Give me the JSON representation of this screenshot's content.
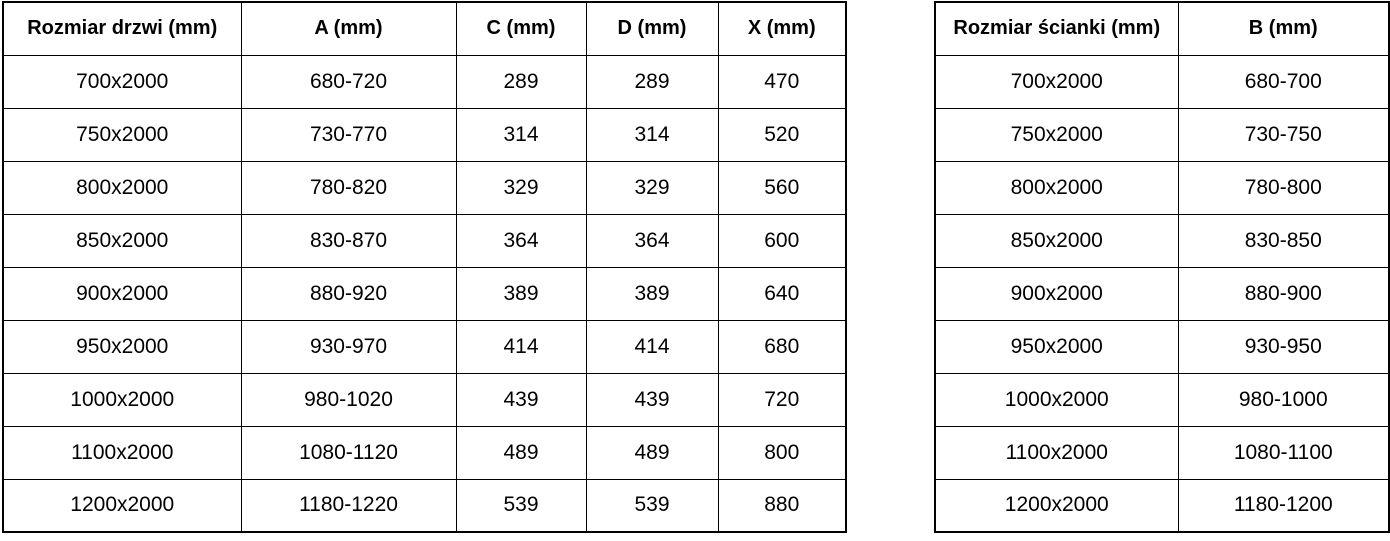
{
  "colors": {
    "background": "#ffffff",
    "border": "#000000",
    "text": "#000000"
  },
  "tables": {
    "door_table": {
      "name": "door-dimensions-table",
      "headers": [
        "Rozmiar drzwi (mm)",
        "A (mm)",
        "C (mm)",
        "D (mm)",
        "X (mm)"
      ],
      "rows": [
        [
          "700x2000",
          "680-720",
          "289",
          "289",
          "470"
        ],
        [
          "750x2000",
          "730-770",
          "314",
          "314",
          "520"
        ],
        [
          "800x2000",
          "780-820",
          "329",
          "329",
          "560"
        ],
        [
          "850x2000",
          "830-870",
          "364",
          "364",
          "600"
        ],
        [
          "900x2000",
          "880-920",
          "389",
          "389",
          "640"
        ],
        [
          "950x2000",
          "930-970",
          "414",
          "414",
          "680"
        ],
        [
          "1000x2000",
          "980-1020",
          "439",
          "439",
          "720"
        ],
        [
          "1100x2000",
          "1080-1120",
          "489",
          "489",
          "800"
        ],
        [
          "1200x2000",
          "1180-1220",
          "539",
          "539",
          "880"
        ]
      ]
    },
    "wall_table": {
      "name": "wall-dimensions-table",
      "headers": [
        "Rozmiar ścianki (mm)",
        "B (mm)"
      ],
      "rows": [
        [
          "700x2000",
          "680-700"
        ],
        [
          "750x2000",
          "730-750"
        ],
        [
          "800x2000",
          "780-800"
        ],
        [
          "850x2000",
          "830-850"
        ],
        [
          "900x2000",
          "880-900"
        ],
        [
          "950x2000",
          "930-950"
        ],
        [
          "1000x2000",
          "980-1000"
        ],
        [
          "1100x2000",
          "1080-1100"
        ],
        [
          "1200x2000",
          "1180-1200"
        ]
      ]
    }
  }
}
